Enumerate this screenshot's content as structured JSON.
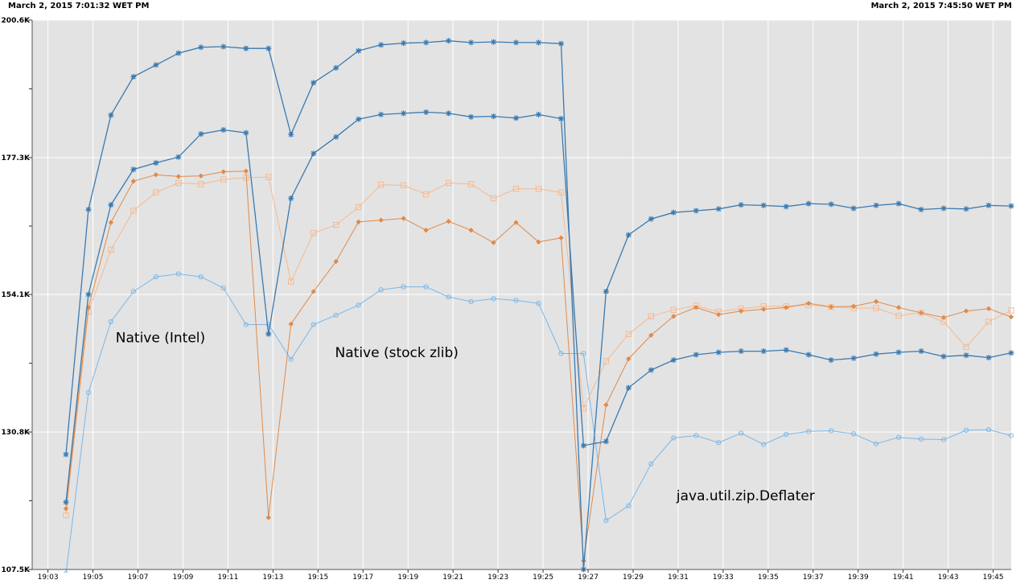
{
  "header": {
    "start_time": "March 2, 2015 7:01:32 WET PM",
    "end_time": "March 2, 2015 7:45:50 WET PM"
  },
  "chart_data": {
    "type": "line",
    "ylim": [
      107.5,
      200.6
    ],
    "xlim": [
      1142.3,
      1185.8
    ],
    "y_ticks": [
      {
        "value": 107.5,
        "label": "107.5K"
      },
      {
        "value": 130.8,
        "label": "130.8K"
      },
      {
        "value": 154.1,
        "label": "154.1K"
      },
      {
        "value": 177.3,
        "label": "177.3K"
      },
      {
        "value": 200.6,
        "label": "200.6K"
      }
    ],
    "y_minor_ticks": [
      119.15,
      142.45,
      165.7,
      188.95
    ],
    "x_ticks": [
      {
        "value": 1143,
        "label": "19:03"
      },
      {
        "value": 1145,
        "label": "19:05"
      },
      {
        "value": 1147,
        "label": "19:07"
      },
      {
        "value": 1149,
        "label": "19:09"
      },
      {
        "value": 1151,
        "label": "19:11"
      },
      {
        "value": 1153,
        "label": "19:13"
      },
      {
        "value": 1155,
        "label": "19:15"
      },
      {
        "value": 1157,
        "label": "19:17"
      },
      {
        "value": 1159,
        "label": "19:19"
      },
      {
        "value": 1161,
        "label": "19:21"
      },
      {
        "value": 1163,
        "label": "19:23"
      },
      {
        "value": 1165,
        "label": "19:25"
      },
      {
        "value": 1167,
        "label": "19:27"
      },
      {
        "value": 1169,
        "label": "19:29"
      },
      {
        "value": 1171,
        "label": "19:31"
      },
      {
        "value": 1173,
        "label": "19:33"
      },
      {
        "value": 1175,
        "label": "19:35"
      },
      {
        "value": 1177,
        "label": "19:37"
      },
      {
        "value": 1179,
        "label": "19:39"
      },
      {
        "value": 1181,
        "label": "19:41"
      },
      {
        "value": 1183,
        "label": "19:43"
      },
      {
        "value": 1185,
        "label": "19:45"
      }
    ],
    "grid": true,
    "annotations": [
      {
        "text": "Native (Intel)",
        "x": 1148.0,
        "y": 146.0
      },
      {
        "text": "Native (stock zlib)",
        "x": 1158.5,
        "y": 143.5
      },
      {
        "text": "java.util.zip.Deflater",
        "x": 1174.0,
        "y": 119.2
      }
    ],
    "x": [
      1143.8,
      1144.8,
      1145.8,
      1146.8,
      1147.8,
      1148.8,
      1149.8,
      1150.8,
      1151.8,
      1152.8,
      1153.8,
      1154.8,
      1155.8,
      1156.8,
      1157.8,
      1158.8,
      1159.8,
      1160.8,
      1161.8,
      1162.8,
      1163.8,
      1164.8,
      1165.8,
      1166.8,
      1167.8,
      1168.8,
      1169.8,
      1170.8,
      1171.8,
      1172.8,
      1173.8,
      1174.8,
      1175.8,
      1176.8,
      1177.8,
      1178.8,
      1179.8,
      1180.8,
      1181.8,
      1182.8,
      1183.8,
      1184.8,
      1185.8
    ],
    "series": [
      {
        "color": "#3a7ab0",
        "marker": "star",
        "width": 1.3,
        "values": [
          127.0,
          168.5,
          184.5,
          191.0,
          193.0,
          195.0,
          196.0,
          196.1,
          195.8,
          195.8,
          181.2,
          190.0,
          192.5,
          195.4,
          196.4,
          196.7,
          196.8,
          197.1,
          196.8,
          196.9,
          196.8,
          196.8,
          196.6,
          107.5,
          154.6,
          164.2,
          166.9,
          168.0,
          168.3,
          168.6,
          169.3,
          169.2,
          169.0,
          169.5,
          169.4,
          168.7,
          169.2,
          169.5,
          168.5,
          168.7,
          168.6,
          169.2,
          169.1
        ]
      },
      {
        "color": "#3a7ab0",
        "marker": "star",
        "width": 1.3,
        "values": [
          118.9,
          154.1,
          169.3,
          175.3,
          176.4,
          177.4,
          181.3,
          182.0,
          181.5,
          147.4,
          170.4,
          178.0,
          180.8,
          183.8,
          184.6,
          184.8,
          185.0,
          184.8,
          184.2,
          184.3,
          184.0,
          184.6,
          183.9,
          128.5,
          129.2,
          138.3,
          141.3,
          143.0,
          143.9,
          144.3,
          144.5,
          144.5,
          144.7,
          143.9,
          143.0,
          143.3,
          144.0,
          144.3,
          144.5,
          143.6,
          143.8,
          143.4,
          144.2
        ]
      },
      {
        "color": "#e08a4a",
        "marker": "diamond",
        "width": 1.0,
        "values": [
          117.8,
          151.9,
          166.3,
          173.3,
          174.4,
          174.1,
          174.2,
          174.9,
          175.0,
          116.3,
          149.1,
          154.6,
          159.7,
          166.4,
          166.7,
          167.0,
          165.0,
          166.5,
          165.0,
          162.9,
          166.3,
          163.0,
          163.7,
          109.0,
          135.4,
          143.2,
          147.2,
          150.4,
          151.9,
          150.7,
          151.3,
          151.6,
          151.9,
          152.6,
          152.0,
          152.1,
          152.9,
          151.9,
          151.0,
          150.2,
          151.3,
          151.7,
          150.3
        ]
      },
      {
        "color": "#f7b98e",
        "marker": "square",
        "width": 1.0,
        "values": [
          116.7,
          151.2,
          161.7,
          168.3,
          171.4,
          173.0,
          172.8,
          173.6,
          173.9,
          174.0,
          156.3,
          164.5,
          165.9,
          168.9,
          172.7,
          172.6,
          171.1,
          173.0,
          172.8,
          170.4,
          172.0,
          172.0,
          171.4,
          134.8,
          142.8,
          147.4,
          150.4,
          151.5,
          152.2,
          151.2,
          151.7,
          152.1,
          152.1,
          152.3,
          152.0,
          151.8,
          151.8,
          150.5,
          151.0,
          149.5,
          145.2,
          149.5,
          151.4
        ]
      },
      {
        "color": "#7ab8ea",
        "marker": "circle",
        "width": 1.0,
        "values": [
          106.8,
          137.5,
          149.5,
          154.6,
          157.1,
          157.6,
          157.1,
          155.2,
          149.0,
          149.0,
          143.1,
          149.0,
          150.6,
          152.3,
          154.9,
          155.4,
          155.4,
          153.7,
          152.9,
          153.4,
          153.1,
          152.6,
          144.1,
          144.1,
          115.8,
          118.3,
          125.4,
          129.8,
          130.2,
          129.0,
          130.6,
          128.7,
          130.4,
          130.9,
          131.0,
          130.5,
          128.8,
          129.9,
          129.6,
          129.5,
          131.1,
          131.2,
          130.2
        ]
      }
    ]
  }
}
